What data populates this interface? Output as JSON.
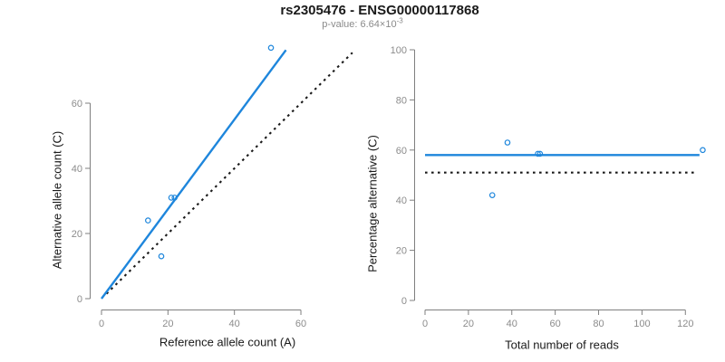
{
  "header": {
    "title": "rs2305476 - ENSG00000117868",
    "pvalue_text": "p-value: 6.64×10",
    "pvalue_exponent": "-3"
  },
  "colors": {
    "accent_blue": "#1E86DC",
    "line_black": "#1a1a1a",
    "axis_gray": "#7f7f7f",
    "tick_label_gray": "#8c8c8c"
  },
  "chart_data": [
    {
      "type": "scatter",
      "name": "allele-counts-plot",
      "xlabel": "Reference allele count (A)",
      "ylabel": "Alternative allele count (C)",
      "xticks": [
        0,
        20,
        40,
        60
      ],
      "yticks": [
        0,
        20,
        40,
        60
      ],
      "xlim": [
        0,
        76
      ],
      "ylim": [
        0,
        77
      ],
      "grid": false,
      "points": [
        [
          14,
          24
        ],
        [
          18,
          13
        ],
        [
          21,
          31
        ],
        [
          22,
          31
        ],
        [
          51,
          77
        ]
      ],
      "lines": [
        {
          "name": "identity-line",
          "style": "dotted",
          "color": "black",
          "x": [
            1.5,
            75.5
          ],
          "y": [
            1.5,
            75.5
          ]
        },
        {
          "name": "regression-line",
          "style": "solid",
          "color": "blue",
          "x": [
            0,
            55.5
          ],
          "y": [
            0,
            76.3
          ]
        }
      ]
    },
    {
      "type": "scatter",
      "name": "percentage-vs-reads-plot",
      "xlabel": "Total number of reads",
      "ylabel": "Percentage alternative (C)",
      "xticks": [
        0,
        20,
        40,
        60,
        80,
        100,
        120
      ],
      "yticks": [
        0,
        20,
        40,
        60,
        80,
        100
      ],
      "xlim": [
        0,
        128
      ],
      "ylim": [
        0,
        100
      ],
      "grid": false,
      "points": [
        [
          31,
          42
        ],
        [
          38,
          63
        ],
        [
          52,
          58.5
        ],
        [
          53,
          58.5
        ],
        [
          128,
          60
        ]
      ],
      "lines": [
        {
          "name": "expected-50pct-line",
          "style": "dotted",
          "color": "black",
          "x": [
            0,
            124
          ],
          "y": [
            51,
            51
          ]
        },
        {
          "name": "mean-percentage-line",
          "style": "solid",
          "color": "blue",
          "x": [
            0,
            126.5
          ],
          "y": [
            58,
            58
          ]
        }
      ]
    }
  ]
}
